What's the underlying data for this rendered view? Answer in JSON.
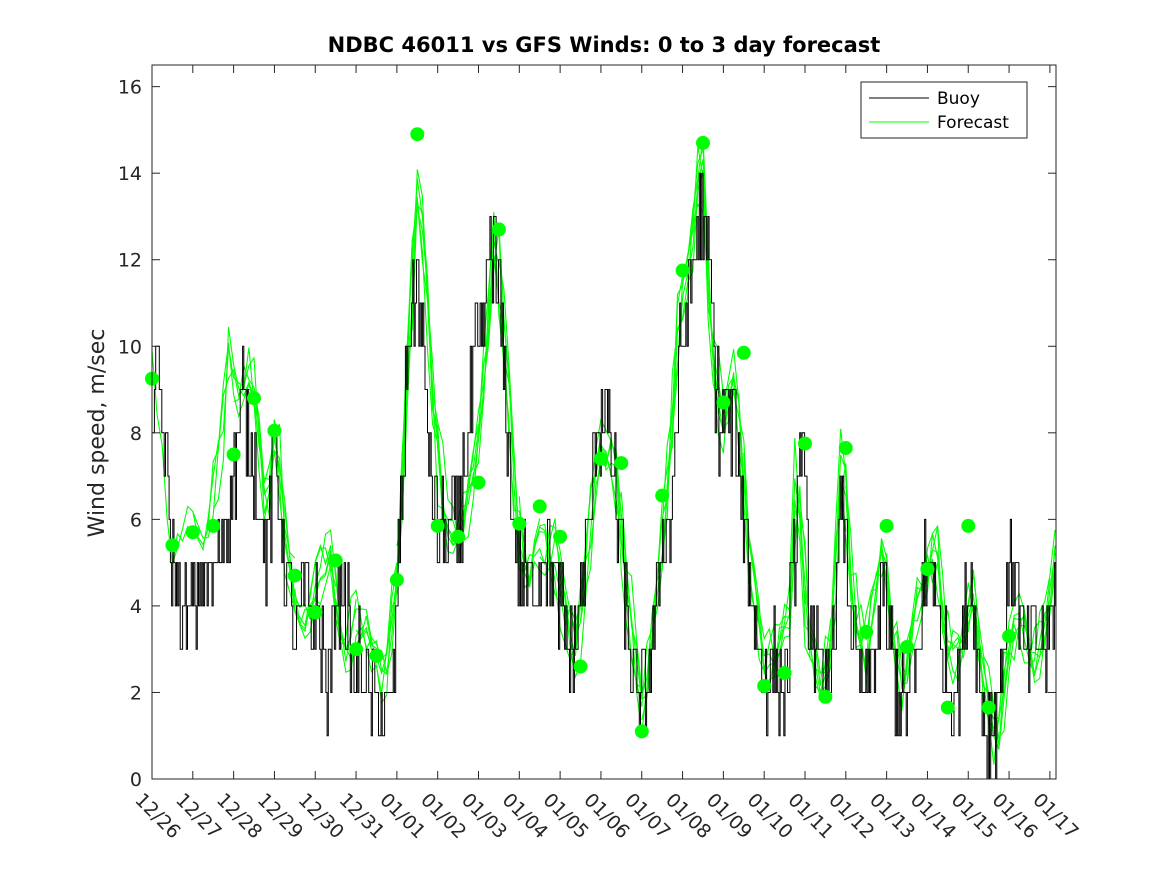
{
  "chart_data": {
    "type": "line",
    "title": "NDBC 46011 vs GFS Winds: 0 to 3 day forecast",
    "xlabel": "",
    "ylabel": "Wind speed, m/sec",
    "ylim": [
      0,
      16.5
    ],
    "yticks": [
      0,
      2,
      4,
      6,
      8,
      10,
      12,
      14,
      16
    ],
    "xlim": [
      0,
      22.15
    ],
    "xtick_labels": [
      "12/26",
      "12/27",
      "12/28",
      "12/29",
      "12/30",
      "12/31",
      "01/01",
      "01/02",
      "01/03",
      "01/04",
      "01/05",
      "01/06",
      "01/07",
      "01/08",
      "01/09",
      "01/10",
      "01/11",
      "01/12",
      "01/13",
      "01/14",
      "01/15",
      "01/16",
      "01/17"
    ],
    "legend": {
      "position": "top-right",
      "entries": [
        "Buoy",
        "Forecast"
      ]
    },
    "colors": {
      "buoy": "#000000",
      "forecast": "#00ff00"
    },
    "buoy_anchors": [
      [
        0.0,
        9.0
      ],
      [
        0.2,
        9.0
      ],
      [
        0.5,
        5.0
      ],
      [
        0.7,
        4.0
      ],
      [
        0.9,
        3.5
      ],
      [
        1.2,
        4.5
      ],
      [
        1.5,
        4.5
      ],
      [
        1.7,
        5.5
      ],
      [
        2.0,
        7.0
      ],
      [
        2.2,
        9.0
      ],
      [
        2.4,
        8.0
      ],
      [
        2.6,
        6.5
      ],
      [
        2.8,
        5.0
      ],
      [
        3.0,
        7.5
      ],
      [
        3.2,
        5.5
      ],
      [
        3.5,
        3.0
      ],
      [
        3.7,
        4.5
      ],
      [
        3.9,
        3.8
      ],
      [
        4.1,
        3.5
      ],
      [
        4.3,
        2.0
      ],
      [
        4.5,
        4.0
      ],
      [
        4.7,
        4.5
      ],
      [
        4.9,
        2.5
      ],
      [
        5.1,
        3.0
      ],
      [
        5.3,
        2.0
      ],
      [
        5.5,
        1.5
      ],
      [
        5.7,
        1.5
      ],
      [
        5.9,
        2.0
      ],
      [
        6.1,
        6.0
      ],
      [
        6.3,
        10.5
      ],
      [
        6.5,
        11.5
      ],
      [
        6.7,
        9.0
      ],
      [
        6.9,
        6.0
      ],
      [
        7.1,
        5.5
      ],
      [
        7.3,
        5.5
      ],
      [
        7.5,
        5.8
      ],
      [
        7.7,
        7.5
      ],
      [
        7.9,
        9.5
      ],
      [
        8.1,
        10.5
      ],
      [
        8.3,
        12.5
      ],
      [
        8.5,
        11.0
      ],
      [
        8.7,
        8.0
      ],
      [
        8.9,
        5.5
      ],
      [
        9.1,
        4.5
      ],
      [
        9.3,
        4.5
      ],
      [
        9.5,
        5.0
      ],
      [
        9.7,
        5.5
      ],
      [
        9.9,
        4.0
      ],
      [
        10.1,
        3.5
      ],
      [
        10.3,
        3.0
      ],
      [
        10.5,
        4.0
      ],
      [
        10.7,
        6.0
      ],
      [
        10.9,
        8.0
      ],
      [
        11.1,
        8.5
      ],
      [
        11.3,
        7.0
      ],
      [
        11.5,
        5.0
      ],
      [
        11.7,
        3.0
      ],
      [
        11.9,
        1.5
      ],
      [
        12.1,
        2.0
      ],
      [
        12.3,
        3.5
      ],
      [
        12.5,
        5.5
      ],
      [
        12.7,
        6.0
      ],
      [
        12.9,
        9.5
      ],
      [
        13.1,
        11.0
      ],
      [
        13.3,
        12.5
      ],
      [
        13.5,
        13.0
      ],
      [
        13.7,
        11.0
      ],
      [
        13.9,
        8.0
      ],
      [
        14.1,
        8.5
      ],
      [
        14.3,
        8.0
      ],
      [
        14.5,
        6.0
      ],
      [
        14.7,
        4.5
      ],
      [
        14.9,
        2.5
      ],
      [
        15.1,
        2.5
      ],
      [
        15.3,
        2.5
      ],
      [
        15.5,
        2.0
      ],
      [
        15.7,
        4.5
      ],
      [
        15.9,
        8.0
      ],
      [
        16.1,
        4.0
      ],
      [
        16.3,
        2.5
      ],
      [
        16.5,
        2.0
      ],
      [
        16.7,
        3.5
      ],
      [
        16.9,
        6.5
      ],
      [
        17.1,
        4.0
      ],
      [
        17.3,
        2.5
      ],
      [
        17.5,
        2.0
      ],
      [
        17.7,
        3.0
      ],
      [
        17.9,
        4.5
      ],
      [
        18.1,
        3.0
      ],
      [
        18.3,
        2.0
      ],
      [
        18.5,
        2.0
      ],
      [
        18.7,
        2.5
      ],
      [
        18.9,
        4.5
      ],
      [
        19.1,
        5.5
      ],
      [
        19.3,
        3.0
      ],
      [
        19.5,
        2.5
      ],
      [
        19.7,
        2.0
      ],
      [
        19.9,
        3.5
      ],
      [
        20.1,
        4.5
      ],
      [
        20.3,
        2.0
      ],
      [
        20.5,
        1.0
      ],
      [
        20.7,
        1.5
      ],
      [
        20.9,
        4.0
      ],
      [
        21.1,
        5.5
      ],
      [
        21.3,
        3.0
      ],
      [
        21.5,
        3.0
      ],
      [
        21.7,
        3.5
      ],
      [
        21.9,
        3.0
      ],
      [
        22.15,
        4.5
      ]
    ],
    "forecast_anchors": [
      [
        0.0,
        9.3
      ],
      [
        0.5,
        5.3
      ],
      [
        0.9,
        5.7
      ],
      [
        1.3,
        5.8
      ],
      [
        1.7,
        7.5
      ],
      [
        1.9,
        10.0
      ],
      [
        2.1,
        9.0
      ],
      [
        2.4,
        9.5
      ],
      [
        2.8,
        6.0
      ],
      [
        3.0,
        8.5
      ],
      [
        3.3,
        5.0
      ],
      [
        3.6,
        3.5
      ],
      [
        4.0,
        4.5
      ],
      [
        4.4,
        5.0
      ],
      [
        4.7,
        2.8
      ],
      [
        5.0,
        3.5
      ],
      [
        5.4,
        3.0
      ],
      [
        5.7,
        2.5
      ],
      [
        6.0,
        4.5
      ],
      [
        6.2,
        8.0
      ],
      [
        6.5,
        14.0
      ],
      [
        6.7,
        12.0
      ],
      [
        6.9,
        8.5
      ],
      [
        7.2,
        6.0
      ],
      [
        7.5,
        5.6
      ],
      [
        7.8,
        6.5
      ],
      [
        8.1,
        9.0
      ],
      [
        8.4,
        13.0
      ],
      [
        8.6,
        10.5
      ],
      [
        8.9,
        6.5
      ],
      [
        9.2,
        4.5
      ],
      [
        9.5,
        5.5
      ],
      [
        9.8,
        5.5
      ],
      [
        10.1,
        4.0
      ],
      [
        10.4,
        3.0
      ],
      [
        10.7,
        5.5
      ],
      [
        11.0,
        8.0
      ],
      [
        11.3,
        7.5
      ],
      [
        11.6,
        4.5
      ],
      [
        12.0,
        1.8
      ],
      [
        12.3,
        3.5
      ],
      [
        12.6,
        6.5
      ],
      [
        12.9,
        11.0
      ],
      [
        13.2,
        12.0
      ],
      [
        13.5,
        15.0
      ],
      [
        13.7,
        10.5
      ],
      [
        14.0,
        8.0
      ],
      [
        14.3,
        9.5
      ],
      [
        14.6,
        5.5
      ],
      [
        15.0,
        2.5
      ],
      [
        15.3,
        2.8
      ],
      [
        15.6,
        3.5
      ],
      [
        15.8,
        7.5
      ],
      [
        16.1,
        3.0
      ],
      [
        16.4,
        2.0
      ],
      [
        16.7,
        3.5
      ],
      [
        16.9,
        7.5
      ],
      [
        17.2,
        4.0
      ],
      [
        17.5,
        2.5
      ],
      [
        17.9,
        5.5
      ],
      [
        18.1,
        3.5
      ],
      [
        18.4,
        2.0
      ],
      [
        18.7,
        3.5
      ],
      [
        19.0,
        5.0
      ],
      [
        19.2,
        5.5
      ],
      [
        19.5,
        2.5
      ],
      [
        19.8,
        3.0
      ],
      [
        20.1,
        4.5
      ],
      [
        20.4,
        2.0
      ],
      [
        20.7,
        1.0
      ],
      [
        21.0,
        3.0
      ],
      [
        21.3,
        3.5
      ],
      [
        21.6,
        3.0
      ],
      [
        21.9,
        3.5
      ],
      [
        22.15,
        5.5
      ]
    ],
    "forecast_markers": [
      [
        0.0,
        9.25
      ],
      [
        0.5,
        5.4
      ],
      [
        1.0,
        5.7
      ],
      [
        1.5,
        5.85
      ],
      [
        2.0,
        7.5
      ],
      [
        2.5,
        8.8
      ],
      [
        3.0,
        8.05
      ],
      [
        3.5,
        4.7
      ],
      [
        4.0,
        3.85
      ],
      [
        4.5,
        5.05
      ],
      [
        5.0,
        3.0
      ],
      [
        5.5,
        2.85
      ],
      [
        6.0,
        4.6
      ],
      [
        6.5,
        14.9
      ],
      [
        7.0,
        5.85
      ],
      [
        7.5,
        5.6
      ],
      [
        8.0,
        6.85
      ],
      [
        8.5,
        12.7
      ],
      [
        9.0,
        5.9
      ],
      [
        9.5,
        6.3
      ],
      [
        10.0,
        5.6
      ],
      [
        10.5,
        2.6
      ],
      [
        11.0,
        7.4
      ],
      [
        11.5,
        7.3
      ],
      [
        12.0,
        1.1
      ],
      [
        12.5,
        6.55
      ],
      [
        13.0,
        11.75
      ],
      [
        13.5,
        14.7
      ],
      [
        14.0,
        8.7
      ],
      [
        14.5,
        9.85
      ],
      [
        15.0,
        2.15
      ],
      [
        15.5,
        2.45
      ],
      [
        16.0,
        7.75
      ],
      [
        16.5,
        1.9
      ],
      [
        17.0,
        7.65
      ],
      [
        17.5,
        3.4
      ],
      [
        18.0,
        5.85
      ],
      [
        18.5,
        3.05
      ],
      [
        19.0,
        4.85
      ],
      [
        19.5,
        1.65
      ],
      [
        20.0,
        5.85
      ],
      [
        20.5,
        1.65
      ],
      [
        21.0,
        3.3
      ]
    ]
  }
}
